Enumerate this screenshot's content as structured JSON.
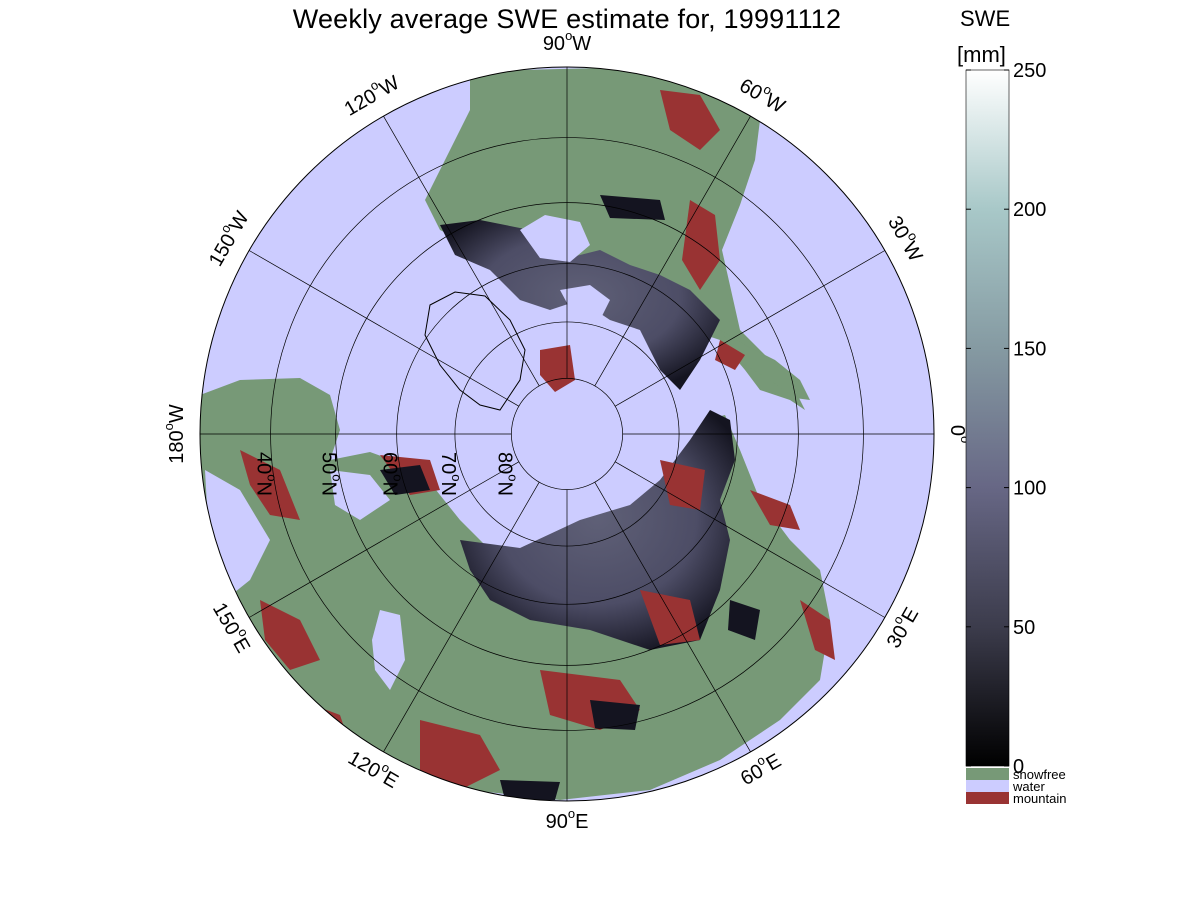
{
  "map": {
    "title": "Weekly average SWE estimate for, 19991112",
    "projection": "north polar stereographic",
    "longitude_labels": [
      {
        "base": "90",
        "sup": "o",
        "hemi": "W",
        "lon": -90
      },
      {
        "base": "120",
        "sup": "o",
        "hemi": "W",
        "lon": -120
      },
      {
        "base": "150",
        "sup": "o",
        "hemi": "W",
        "lon": -150
      },
      {
        "base": "180",
        "sup": "o",
        "hemi": "W",
        "lon": 180
      },
      {
        "base": "150",
        "sup": "o",
        "hemi": "E",
        "lon": 150
      },
      {
        "base": "120",
        "sup": "o",
        "hemi": "E",
        "lon": 120
      },
      {
        "base": "90",
        "sup": "o",
        "hemi": "E",
        "lon": 90
      },
      {
        "base": "60",
        "sup": "o",
        "hemi": "E",
        "lon": 60
      },
      {
        "base": "30",
        "sup": "o",
        "hemi": "E",
        "lon": 30
      },
      {
        "base": "0",
        "sup": "o",
        "hemi": "",
        "lon": 0
      },
      {
        "base": "30",
        "sup": "o",
        "hemi": "W",
        "lon": -30
      },
      {
        "base": "60",
        "sup": "o",
        "hemi": "W",
        "lon": -60
      }
    ],
    "latitude_labels": [
      {
        "base": "80",
        "sup": "o",
        "hemi": "N",
        "lat": 80
      },
      {
        "base": "70",
        "sup": "o",
        "hemi": "N",
        "lat": 70
      },
      {
        "base": "60",
        "sup": "o",
        "hemi": "N",
        "lat": 60
      },
      {
        "base": "50",
        "sup": "o",
        "hemi": "N",
        "lat": 50
      },
      {
        "base": "40",
        "sup": "o",
        "hemi": "N",
        "lat": 40
      }
    ],
    "colors": {
      "water": "#ccccff",
      "snowfree": "#779977",
      "mountain": "#993333",
      "snow_low": "#141420",
      "snow_mid": "#4d4d66",
      "snow_high": "#5f6077"
    }
  },
  "colorbar": {
    "title_line1": "SWE",
    "title_line2": "[mm]",
    "min": 0,
    "max": 250,
    "ticks": [
      "0",
      "50",
      "100",
      "150",
      "200",
      "250"
    ],
    "stops": [
      {
        "v": 0,
        "c": "#000000"
      },
      {
        "v": 50,
        "c": "#3c3c4c"
      },
      {
        "v": 100,
        "c": "#676785"
      },
      {
        "v": 150,
        "c": "#859aa2"
      },
      {
        "v": 200,
        "c": "#a8c8c8"
      },
      {
        "v": 250,
        "c": "#ffffff"
      }
    ],
    "categories": [
      {
        "label": "snowfree",
        "color": "#779977"
      },
      {
        "label": "water",
        "color": "#ccccff"
      },
      {
        "label": "mountain",
        "color": "#993333"
      }
    ]
  }
}
